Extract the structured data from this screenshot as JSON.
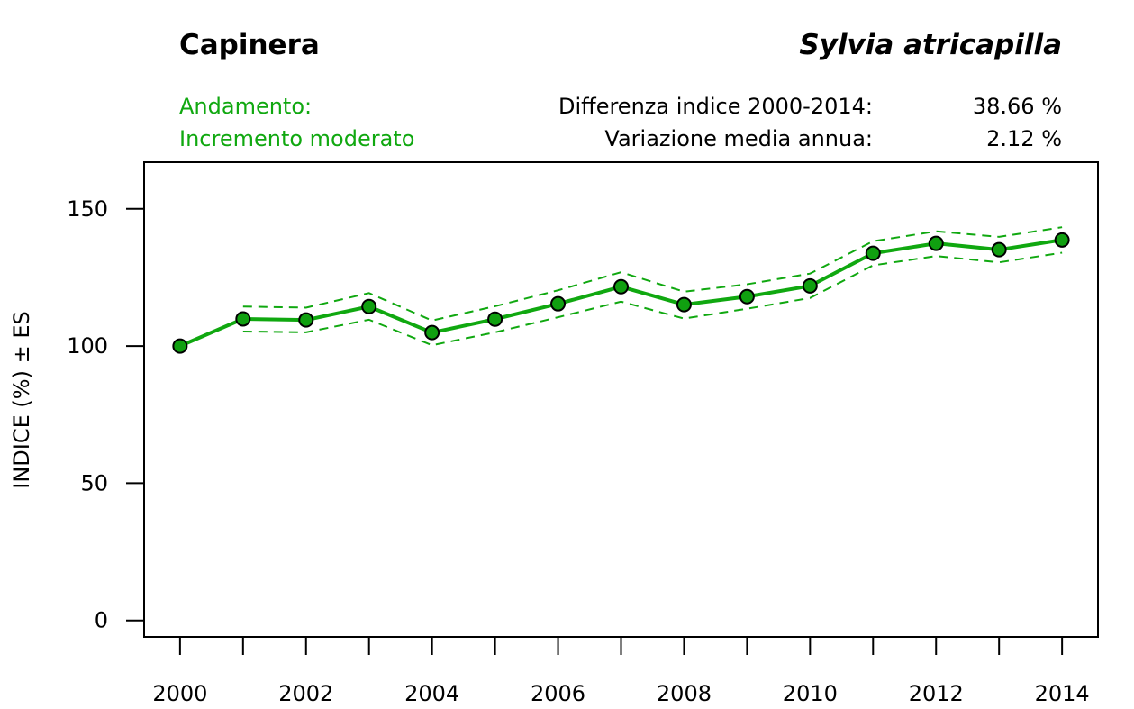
{
  "header": {
    "common_name": "Capinera",
    "scientific_name": "Sylvia atricapilla",
    "trend_label": "Andamento:",
    "trend_value": "Incremento moderato",
    "stats": [
      {
        "label": "Differenza indice 2000-2014:",
        "value": "38.66 %"
      },
      {
        "label": "Variazione media annua:",
        "value": "2.12 %"
      }
    ]
  },
  "colors": {
    "series": "#10a810",
    "marker_fill": "#10a010",
    "marker_stroke": "#000000",
    "text_green": "#10a810"
  },
  "chart_data": {
    "type": "line",
    "title": "Capinera — Sylvia atricapilla",
    "xlabel": "",
    "ylabel": "INDICE (%) ± ES",
    "ylim": [
      -6,
      167
    ],
    "xlim": [
      1999.43,
      2014.57
    ],
    "yticks": [
      0,
      50,
      100,
      150
    ],
    "xticks": [
      2000,
      2001,
      2002,
      2003,
      2004,
      2005,
      2006,
      2007,
      2008,
      2009,
      2010,
      2011,
      2012,
      2013,
      2014
    ],
    "xtick_labels": [
      "2000",
      "",
      "2002",
      "",
      "2004",
      "",
      "2006",
      "",
      "2008",
      "",
      "2010",
      "",
      "2012",
      "",
      "2014"
    ],
    "grid": false,
    "legend": "none",
    "x": [
      2000,
      2001,
      2002,
      2003,
      2004,
      2005,
      2006,
      2007,
      2008,
      2009,
      2010,
      2011,
      2012,
      2013,
      2014
    ],
    "series": [
      {
        "name": "Indice",
        "style": "solid-with-markers",
        "values": [
          100,
          109.9,
          109.5,
          114.4,
          104.9,
          109.8,
          115.4,
          121.6,
          115.1,
          118.0,
          121.9,
          133.8,
          137.4,
          135.1,
          138.66
        ]
      },
      {
        "name": "Indice + ES",
        "style": "dashed",
        "values": [
          null,
          114.4,
          114.0,
          119.3,
          109.3,
          114.5,
          120.3,
          126.9,
          119.8,
          122.5,
          126.4,
          138.2,
          141.8,
          139.8,
          143.3
        ]
      },
      {
        "name": "Indice - ES",
        "style": "dashed",
        "values": [
          null,
          105.3,
          105.0,
          109.6,
          100.3,
          105.0,
          110.5,
          116.2,
          110.0,
          113.6,
          117.5,
          129.4,
          132.8,
          130.5,
          134.0
        ]
      }
    ]
  }
}
